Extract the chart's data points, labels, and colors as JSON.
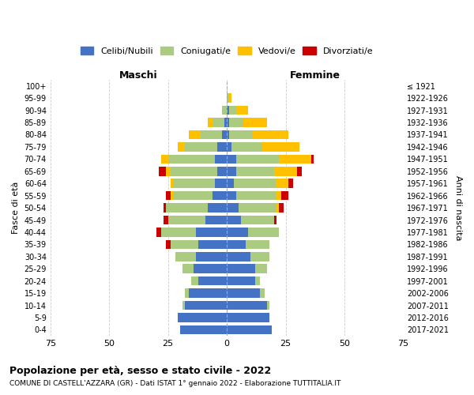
{
  "age_groups": [
    "100+",
    "95-99",
    "90-94",
    "85-89",
    "80-84",
    "75-79",
    "70-74",
    "65-69",
    "60-64",
    "55-59",
    "50-54",
    "45-49",
    "40-44",
    "35-39",
    "30-34",
    "25-29",
    "20-24",
    "15-19",
    "10-14",
    "5-9",
    "0-4"
  ],
  "year_labels": [
    "≤ 1921",
    "1922-1926",
    "1927-1931",
    "1932-1936",
    "1937-1941",
    "1942-1946",
    "1947-1951",
    "1952-1956",
    "1957-1961",
    "1962-1966",
    "1967-1971",
    "1972-1976",
    "1977-1981",
    "1982-1986",
    "1987-1991",
    "1992-1996",
    "1997-2001",
    "2002-2006",
    "2007-2011",
    "2012-2016",
    "2017-2021"
  ],
  "males": {
    "celibi": [
      0,
      0,
      0,
      1,
      2,
      4,
      5,
      4,
      5,
      6,
      8,
      9,
      13,
      12,
      13,
      14,
      12,
      16,
      18,
      21,
      20
    ],
    "coniugati": [
      0,
      0,
      2,
      5,
      9,
      14,
      20,
      20,
      18,
      17,
      18,
      16,
      15,
      12,
      9,
      5,
      3,
      2,
      1,
      0,
      0
    ],
    "vedovi": [
      0,
      0,
      0,
      2,
      5,
      3,
      3,
      2,
      1,
      1,
      0,
      0,
      0,
      0,
      0,
      0,
      0,
      0,
      0,
      0,
      0
    ],
    "divorziati": [
      0,
      0,
      0,
      0,
      0,
      0,
      0,
      3,
      0,
      2,
      1,
      2,
      2,
      2,
      0,
      0,
      0,
      0,
      0,
      0,
      0
    ]
  },
  "females": {
    "nubili": [
      0,
      0,
      1,
      1,
      1,
      2,
      4,
      4,
      3,
      4,
      5,
      6,
      9,
      8,
      10,
      12,
      12,
      14,
      17,
      18,
      19
    ],
    "coniugate": [
      0,
      1,
      3,
      6,
      10,
      13,
      18,
      16,
      18,
      17,
      16,
      14,
      13,
      10,
      8,
      5,
      2,
      2,
      1,
      0,
      0
    ],
    "vedove": [
      0,
      1,
      5,
      10,
      15,
      16,
      14,
      10,
      5,
      2,
      1,
      0,
      0,
      0,
      0,
      0,
      0,
      0,
      0,
      0,
      0
    ],
    "divorziate": [
      0,
      0,
      0,
      0,
      0,
      0,
      1,
      2,
      2,
      3,
      2,
      1,
      0,
      0,
      0,
      0,
      0,
      0,
      0,
      0,
      0
    ]
  },
  "colors": {
    "celibi_nubili": "#4472C4",
    "coniugati": "#AACB80",
    "vedovi": "#FFC000",
    "divorziati": "#CC0000"
  },
  "title": "Popolazione per età, sesso e stato civile - 2022",
  "subtitle": "COMUNE DI CASTELL'AZZARA (GR) - Dati ISTAT 1° gennaio 2022 - Elaborazione TUTTITALIA.IT",
  "xlabel_left": "Maschi",
  "xlabel_right": "Femmine",
  "ylabel": "Fasce di età",
  "ylabel_right": "Anni di nascita",
  "xlim": 75,
  "legend_labels": [
    "Celibi/Nubili",
    "Coniugati/e",
    "Vedovi/e",
    "Divorziati/e"
  ],
  "background_color": "#ffffff"
}
